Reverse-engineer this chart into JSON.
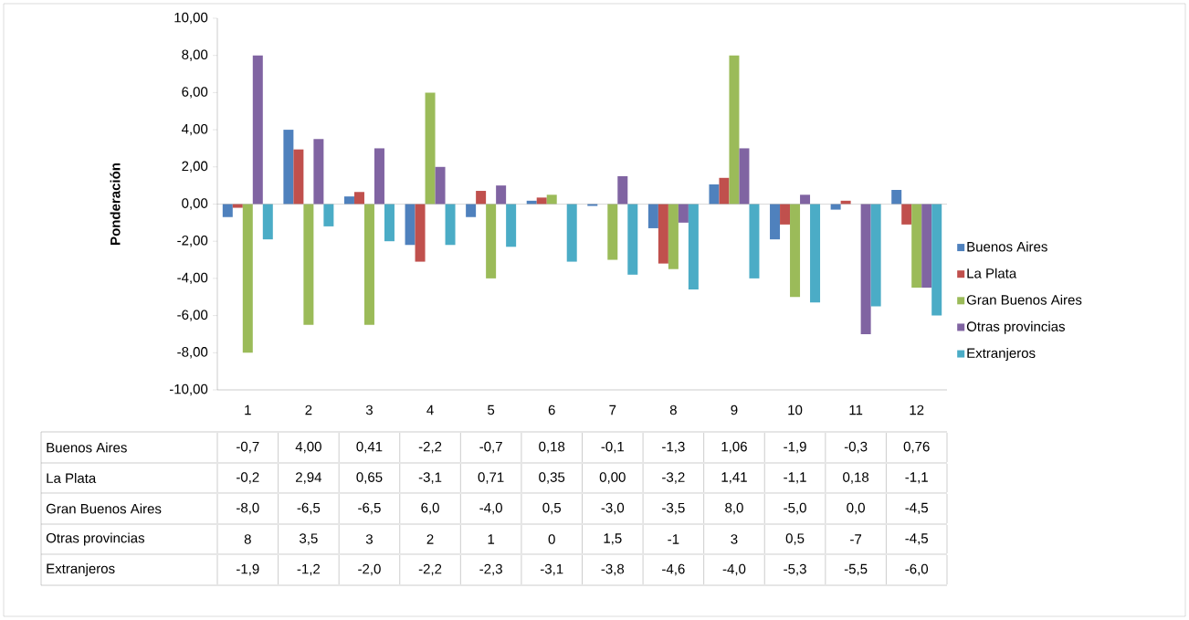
{
  "chart_data": {
    "type": "bar",
    "ylabel": "Ponderación",
    "categories": [
      "1",
      "2",
      "3",
      "4",
      "5",
      "6",
      "7",
      "8",
      "9",
      "10",
      "11",
      "12"
    ],
    "ylim": [
      -10,
      10
    ],
    "yticks": [
      {
        "value": -10,
        "label": "-10,00"
      },
      {
        "value": -8,
        "label": "-8,00"
      },
      {
        "value": -6,
        "label": "-6,00"
      },
      {
        "value": -4,
        "label": "-4,00"
      },
      {
        "value": -2,
        "label": "-2,00"
      },
      {
        "value": 0,
        "label": "0,00"
      },
      {
        "value": 2,
        "label": "2,00"
      },
      {
        "value": 4,
        "label": "4,00"
      },
      {
        "value": 6,
        "label": "6,00"
      },
      {
        "value": 8,
        "label": "8,00"
      },
      {
        "value": 10,
        "label": "10,00"
      }
    ],
    "legend": "right",
    "series": [
      {
        "name": "Buenos Aires",
        "color": "#4f81bd",
        "values": [
          -0.7,
          4.0,
          0.41,
          -2.2,
          -0.7,
          0.18,
          -0.1,
          -1.3,
          1.06,
          -1.9,
          -0.3,
          0.76
        ],
        "value_labels": [
          "-0,7",
          "4,00",
          "0,41",
          "-2,2",
          "-0,7",
          "0,18",
          "-0,1",
          "-1,3",
          "1,06",
          "-1,9",
          "-0,3",
          "0,76"
        ]
      },
      {
        "name": "La Plata",
        "color": "#c0504d",
        "values": [
          -0.2,
          2.94,
          0.65,
          -3.1,
          0.71,
          0.35,
          0.0,
          -3.2,
          1.41,
          -1.1,
          0.18,
          -1.1
        ],
        "value_labels": [
          "-0,2",
          "2,94",
          "0,65",
          "-3,1",
          "0,71",
          "0,35",
          "0,00",
          "-3,2",
          "1,41",
          "-1,1",
          "0,18",
          "-1,1"
        ]
      },
      {
        "name": "Gran Buenos Aires",
        "color": "#9bbb59",
        "values": [
          -8.0,
          -6.5,
          -6.5,
          6.0,
          -4.0,
          0.5,
          -3.0,
          -3.5,
          8.0,
          -5.0,
          0.0,
          -4.5
        ],
        "value_labels": [
          "-8,0",
          "-6,5",
          "-6,5",
          "6,0",
          "-4,0",
          "0,5",
          "-3,0",
          "-3,5",
          "8,0",
          "-5,0",
          "0,0",
          "-4,5"
        ]
      },
      {
        "name": "Otras provincias",
        "color": "#8064a2",
        "values": [
          8,
          3.5,
          3,
          2,
          1,
          0,
          1.5,
          -1,
          3,
          0.5,
          -7,
          -4.5
        ],
        "value_labels": [
          "8",
          "3,5",
          "3",
          "2",
          "1",
          "0",
          "1,5",
          "-1",
          "3",
          "0,5",
          "-7",
          "-4,5"
        ]
      },
      {
        "name": "Extranjeros",
        "color": "#4bacc6",
        "values": [
          -1.9,
          -1.2,
          -2.0,
          -2.2,
          -2.3,
          -3.1,
          -3.8,
          -4.6,
          -4.0,
          -5.3,
          -5.5,
          -6.0
        ],
        "value_labels": [
          "-1,9",
          "-1,2",
          "-2,0",
          "-2,2",
          "-2,3",
          "-3,1",
          "-3,8",
          "-4,6",
          "-4,0",
          "-5,3",
          "-5,5",
          "-6,0"
        ]
      }
    ]
  }
}
